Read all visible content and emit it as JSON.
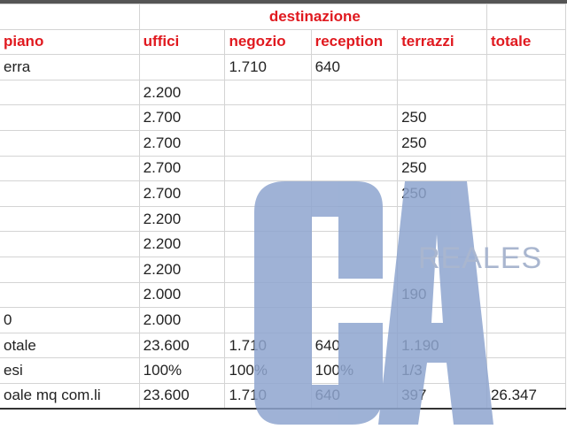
{
  "header": {
    "group": "destinazione",
    "columns": [
      "piano",
      "uffici",
      "negozio",
      "reception",
      "terrazzi",
      "totale"
    ]
  },
  "rows": [
    [
      "erra",
      "",
      "1.710",
      "640",
      "",
      ""
    ],
    [
      "",
      "2.200",
      "",
      "",
      "",
      ""
    ],
    [
      "",
      "2.700",
      "",
      "",
      "250",
      ""
    ],
    [
      "",
      "2.700",
      "",
      "",
      "250",
      ""
    ],
    [
      "",
      "2.700",
      "",
      "",
      "250",
      ""
    ],
    [
      "",
      "2.700",
      "",
      "",
      "250",
      ""
    ],
    [
      "",
      "2.200",
      "",
      "",
      "",
      ""
    ],
    [
      "",
      "2.200",
      "",
      "",
      "",
      ""
    ],
    [
      "",
      "2.200",
      "",
      "",
      "",
      ""
    ],
    [
      "",
      "2.000",
      "",
      "",
      "190",
      ""
    ],
    [
      "0",
      "2.000",
      "",
      "",
      "",
      ""
    ],
    [
      "otale",
      "23.600",
      "1.710",
      "640",
      "1.190",
      ""
    ],
    [
      "esi",
      "100%",
      "100%",
      "100%",
      "1/3",
      ""
    ],
    [
      "oale mq com.li",
      "23.600",
      "1.710",
      "640",
      "397",
      "26.347"
    ]
  ],
  "watermark": {
    "logo": "CA",
    "text": "REALES",
    "color": "#8ea5cf"
  }
}
